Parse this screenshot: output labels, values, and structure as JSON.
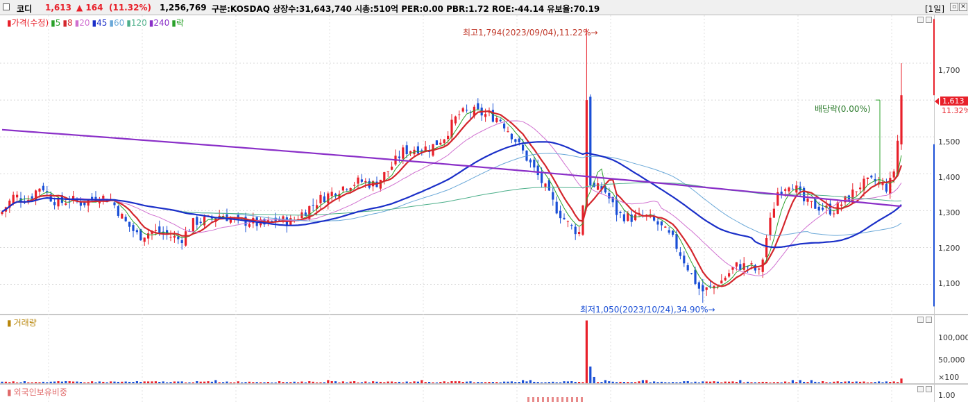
{
  "header": {
    "name": "코디",
    "price": "1,613",
    "change": "▲ 164",
    "change_pct": "(11.32%)",
    "volume": "1,256,769",
    "stats": "구분:KOSDAQ 상장수:31,643,740 시총:510억 PER:0.00 PBR:1.72 ROE:-44.14 유보율:70.19",
    "period": "[1일]",
    "colors": {
      "up": "#e8202a",
      "down": "#1a4fd6"
    }
  },
  "price_pane": {
    "legend": [
      {
        "label": "가격(수정)",
        "color": "#e8202a"
      },
      {
        "label": "5",
        "color": "#2aa12a"
      },
      {
        "label": "8",
        "color": "#d4262c"
      },
      {
        "label": "20",
        "color": "#d070d0"
      },
      {
        "label": "45",
        "color": "#1a2fc8"
      },
      {
        "label": "60",
        "color": "#6aa8d8"
      },
      {
        "label": "120",
        "color": "#4caf8a"
      },
      {
        "label": "240",
        "color": "#8a2fc8"
      },
      {
        "label": "락",
        "color": "#2aa12a"
      }
    ],
    "high_label": "최고1,794(2023/09/04),11.22%",
    "low_label": "최저1,050(2023/10/24),34.90%",
    "dividend_label": "배당락(0.00%)",
    "current_price_tag": "1,613",
    "current_change_tag": "11.32%",
    "yticks": [
      "1,700",
      "1,600",
      "1,500",
      "1,400",
      "1,300",
      "1,200",
      "1,100"
    ]
  },
  "volume_pane": {
    "legend": "거래량",
    "yticks": [
      "100,000",
      "50,000",
      "×100"
    ]
  },
  "foreign_pane": {
    "legend": "외국인보유비중",
    "yticks": [
      "1.00"
    ]
  },
  "chart_data": {
    "type": "candlestick",
    "ylim": [
      1020,
      1830
    ],
    "ma_series": [
      {
        "name": "5",
        "color": "#2aa12a"
      },
      {
        "name": "8",
        "color": "#d4262c"
      },
      {
        "name": "20",
        "color": "#d070d0"
      },
      {
        "name": "45",
        "color": "#1a2fc8"
      },
      {
        "name": "60",
        "color": "#6aa8d8"
      },
      {
        "name": "120",
        "color": "#4caf8a"
      },
      {
        "name": "240",
        "color": "#8a2fc8"
      }
    ],
    "close_anchors": [
      [
        0,
        1290
      ],
      [
        20,
        1340
      ],
      [
        40,
        1330
      ],
      [
        60,
        1370
      ],
      [
        70,
        1340
      ],
      [
        85,
        1320
      ],
      [
        100,
        1330
      ],
      [
        120,
        1320
      ],
      [
        140,
        1340
      ],
      [
        160,
        1330
      ],
      [
        180,
        1270
      ],
      [
        200,
        1230
      ],
      [
        220,
        1245
      ],
      [
        240,
        1235
      ],
      [
        260,
        1220
      ],
      [
        280,
        1270
      ],
      [
        300,
        1275
      ],
      [
        320,
        1290
      ],
      [
        340,
        1270
      ],
      [
        360,
        1270
      ],
      [
        380,
        1260
      ],
      [
        400,
        1275
      ],
      [
        420,
        1270
      ],
      [
        440,
        1300
      ],
      [
        460,
        1330
      ],
      [
        480,
        1350
      ],
      [
        500,
        1370
      ],
      [
        520,
        1380
      ],
      [
        540,
        1370
      ],
      [
        560,
        1410
      ],
      [
        580,
        1460
      ],
      [
        600,
        1470
      ],
      [
        620,
        1470
      ],
      [
        640,
        1500
      ],
      [
        660,
        1560
      ],
      [
        680,
        1570
      ],
      [
        700,
        1560
      ],
      [
        720,
        1550
      ],
      [
        740,
        1500
      ],
      [
        760,
        1440
      ],
      [
        780,
        1380
      ],
      [
        800,
        1310
      ],
      [
        820,
        1260
      ],
      [
        835,
        1240
      ],
      [
        845,
        1400
      ],
      [
        855,
        1360
      ],
      [
        870,
        1360
      ],
      [
        890,
        1290
      ],
      [
        910,
        1280
      ],
      [
        930,
        1285
      ],
      [
        950,
        1260
      ],
      [
        970,
        1220
      ],
      [
        990,
        1150
      ],
      [
        1010,
        1080
      ],
      [
        1025,
        1090
      ],
      [
        1040,
        1110
      ],
      [
        1060,
        1150
      ],
      [
        1080,
        1150
      ],
      [
        1095,
        1130
      ],
      [
        1105,
        1230
      ],
      [
        1120,
        1350
      ],
      [
        1140,
        1380
      ],
      [
        1160,
        1320
      ],
      [
        1180,
        1310
      ],
      [
        1200,
        1300
      ],
      [
        1220,
        1330
      ],
      [
        1240,
        1370
      ],
      [
        1260,
        1380
      ],
      [
        1280,
        1360
      ],
      [
        1290,
        1420
      ],
      [
        1300,
        1613
      ]
    ]
  }
}
